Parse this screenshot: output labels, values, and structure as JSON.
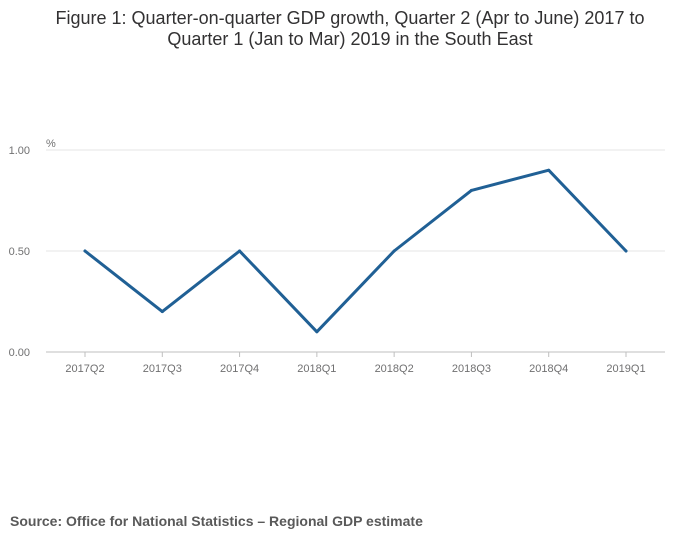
{
  "chart_data": {
    "type": "line",
    "title": "Figure 1: Quarter-on-quarter GDP growth, Quarter 2 (Apr to June) 2017 to Quarter 1 (Jan to Mar) 2019 in the South East",
    "title_lines": [
      "Figure 1: Quarter-on-quarter GDP growth, Quarter 2 (Apr to June) 2017 to",
      "Quarter 1 (Jan to Mar) 2019 in the South East"
    ],
    "xlabel": "",
    "ylabel": "%",
    "categories": [
      "2017Q2",
      "2017Q3",
      "2017Q4",
      "2018Q1",
      "2018Q2",
      "2018Q3",
      "2018Q4",
      "2019Q1"
    ],
    "series": [
      {
        "name": "South East",
        "values": [
          0.5,
          0.2,
          0.5,
          0.1,
          0.5,
          0.8,
          0.9,
          0.5
        ],
        "color": "#206095"
      }
    ],
    "ylim": [
      0,
      1
    ],
    "yticks": [
      0,
      0.5,
      1
    ],
    "ytick_labels": [
      "0.00",
      "0.50",
      "1.00"
    ],
    "grid": true
  },
  "source": "Source: Office for National Statistics – Regional GDP estimate",
  "colors": {
    "line": "#206095",
    "grid": "#e5e5e5",
    "axis": "#bfbfbf"
  }
}
